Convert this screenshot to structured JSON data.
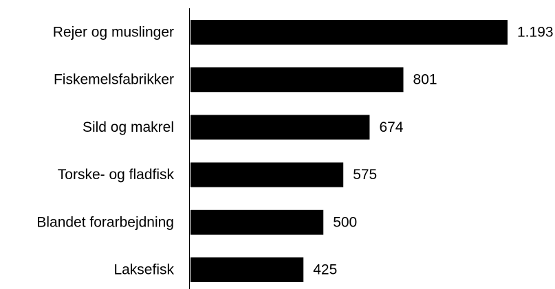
{
  "chart_data": {
    "type": "bar",
    "orientation": "horizontal",
    "categories": [
      "Rejer og muslinger",
      "Fiskemelsfabrikker",
      "Sild og makrel",
      "Torske- og fladfisk",
      "Blandet forarbejdning",
      "Laksefisk"
    ],
    "values": [
      1193,
      801,
      674,
      575,
      500,
      425
    ],
    "value_labels": [
      "1.193",
      "801",
      "674",
      "575",
      "500",
      "425"
    ],
    "color": "#000000"
  }
}
